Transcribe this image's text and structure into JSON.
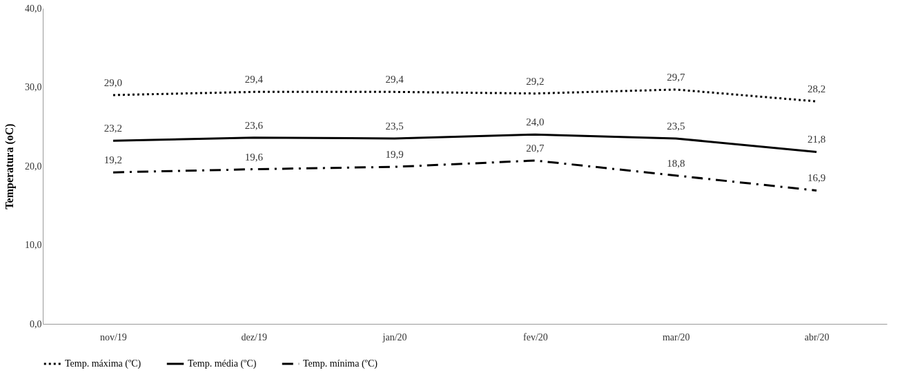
{
  "chart_data": {
    "type": "line",
    "ylabel": "Temperatura (oC)",
    "categories": [
      "nov/19",
      "dez/19",
      "jan/20",
      "fev/20",
      "mar/20",
      "abr/20"
    ],
    "series": [
      {
        "name": "Temp. máxima (ºC)",
        "color": "#000000",
        "line_style": "dotted",
        "values": [
          29.0,
          29.4,
          29.4,
          29.2,
          29.7,
          28.2
        ],
        "value_labels": [
          "29,0",
          "29,4",
          "29,4",
          "29,2",
          "29,7",
          "28,2"
        ]
      },
      {
        "name": "Temp. média (ºC)",
        "color": "#000000",
        "line_style": "solid",
        "values": [
          23.2,
          23.6,
          23.5,
          24.0,
          23.5,
          21.8
        ],
        "value_labels": [
          "23,2",
          "23,6",
          "23,5",
          "24,0",
          "23,5",
          "21,8"
        ]
      },
      {
        "name": "Temp. mínima (ºC)",
        "color": "#000000",
        "line_style": "dashed",
        "values": [
          19.2,
          19.6,
          19.9,
          20.7,
          18.8,
          16.9
        ],
        "value_labels": [
          "19,2",
          "19,6",
          "19,9",
          "20,7",
          "18,8",
          "16,9"
        ]
      }
    ],
    "ylim": [
      0,
      40
    ],
    "yticks": [
      {
        "value": 0,
        "label": "0,0"
      },
      {
        "value": 10,
        "label": "10,0"
      },
      {
        "value": 20,
        "label": "20,0"
      },
      {
        "value": 30,
        "label": "30,0"
      },
      {
        "value": 40,
        "label": "40,0"
      }
    ],
    "grid": false,
    "legend": "bottom",
    "marker": "none"
  }
}
